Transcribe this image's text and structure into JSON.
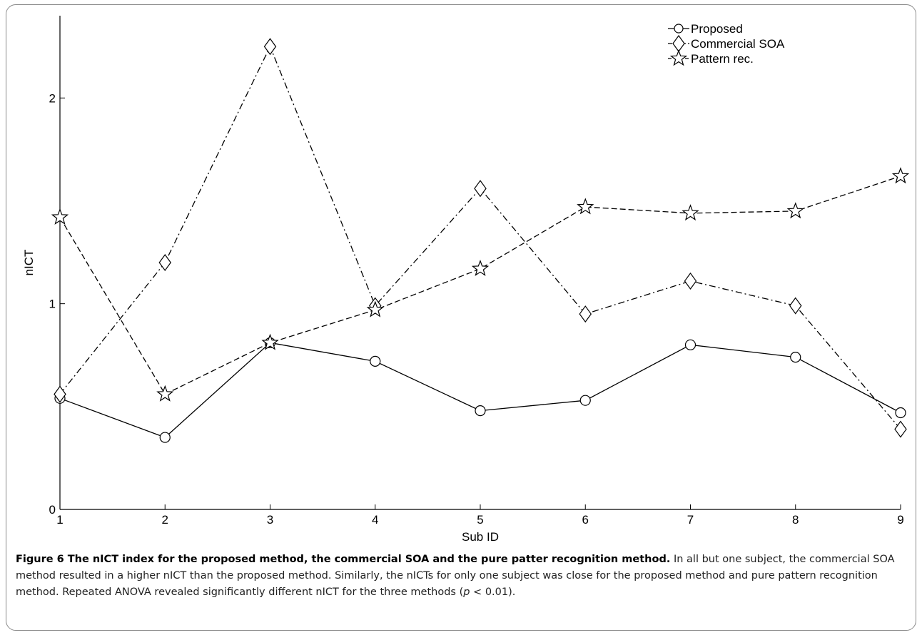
{
  "chart_data": {
    "type": "line",
    "xlabel": "Sub ID",
    "ylabel": "nICT",
    "x": [
      1,
      2,
      3,
      4,
      5,
      6,
      7,
      8,
      9
    ],
    "xlim": [
      1,
      9
    ],
    "ylim": [
      0,
      2.4
    ],
    "yticks": [
      0,
      1,
      2
    ],
    "grid": false,
    "legend_position": "top-right",
    "series": [
      {
        "name": "Proposed",
        "marker": "circle",
        "linestyle": "solid",
        "color": "#000000",
        "values": [
          0.54,
          0.35,
          0.81,
          0.72,
          0.48,
          0.53,
          0.8,
          0.74,
          0.47
        ]
      },
      {
        "name": "Commercial SOA",
        "marker": "diamond",
        "linestyle": "dashdot",
        "color": "#000000",
        "values": [
          0.56,
          1.2,
          2.25,
          0.99,
          1.56,
          0.95,
          1.11,
          0.99,
          0.39
        ]
      },
      {
        "name": "Pattern rec.",
        "marker": "star",
        "linestyle": "dashed",
        "color": "#000000",
        "values": [
          1.42,
          0.56,
          0.81,
          0.97,
          1.17,
          1.47,
          1.44,
          1.45,
          1.62
        ]
      }
    ]
  },
  "caption": {
    "title": "Figure 6 The nICT index for the proposed method, the commercial SOA and the pure patter recognition method.",
    "text_before_p": " In all but one subject, the commercial SOA method resulted in a higher nICT than the proposed method. Similarly, the nICTs for only one subject was close for the proposed method and pure pattern recognition method. Repeated ANOVA revealed significantly different nICT for the three methods (",
    "p_symbol": "p",
    "text_after_p": " < 0.01)."
  }
}
